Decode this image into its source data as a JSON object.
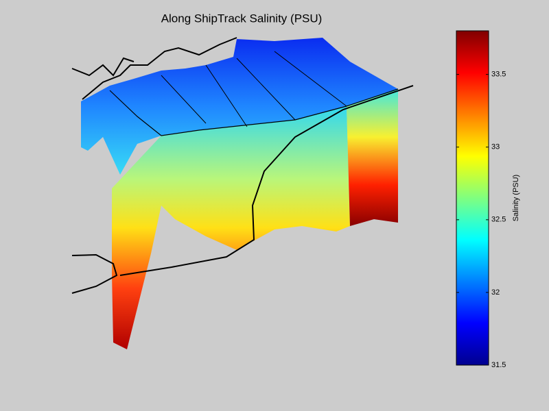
{
  "chart_data": {
    "type": "surface",
    "title": "Along ShipTrack Salinity (PSU)",
    "colorbar_label": "Salinity (PSU)",
    "colormap": "jet",
    "clim": [
      31.5,
      33.8
    ],
    "cticks": [
      31.5,
      32,
      32.5,
      33,
      33.5
    ]
  }
}
